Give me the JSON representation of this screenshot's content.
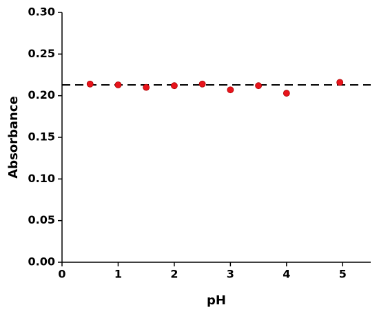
{
  "chart_data": {
    "type": "scatter",
    "x_label": "pH",
    "y_label": "Absorbance",
    "x": [
      0.5,
      1,
      1.5,
      2,
      2.5,
      3,
      3.5,
      4,
      4.95
    ],
    "series": [
      {
        "color": "#e8141c",
        "values": [
          0.214,
          0.213,
          0.21,
          0.212,
          0.214,
          0.207,
          0.212,
          0.203,
          0.216
        ]
      }
    ],
    "reference_line": 0.213,
    "xlim": [
      0,
      5.5
    ],
    "xticks": [
      0,
      1,
      2,
      3,
      4,
      5
    ],
    "ylim": [
      0,
      0.3
    ],
    "yticks": [
      {
        "value": 0,
        "label": "0.00"
      },
      0.05,
      {
        "value": 0.1,
        "label": "0.10"
      },
      0.15,
      {
        "value": 0.2,
        "label": "0.20"
      },
      0.25,
      {
        "value": 0.3,
        "label": "0.30"
      }
    ]
  }
}
